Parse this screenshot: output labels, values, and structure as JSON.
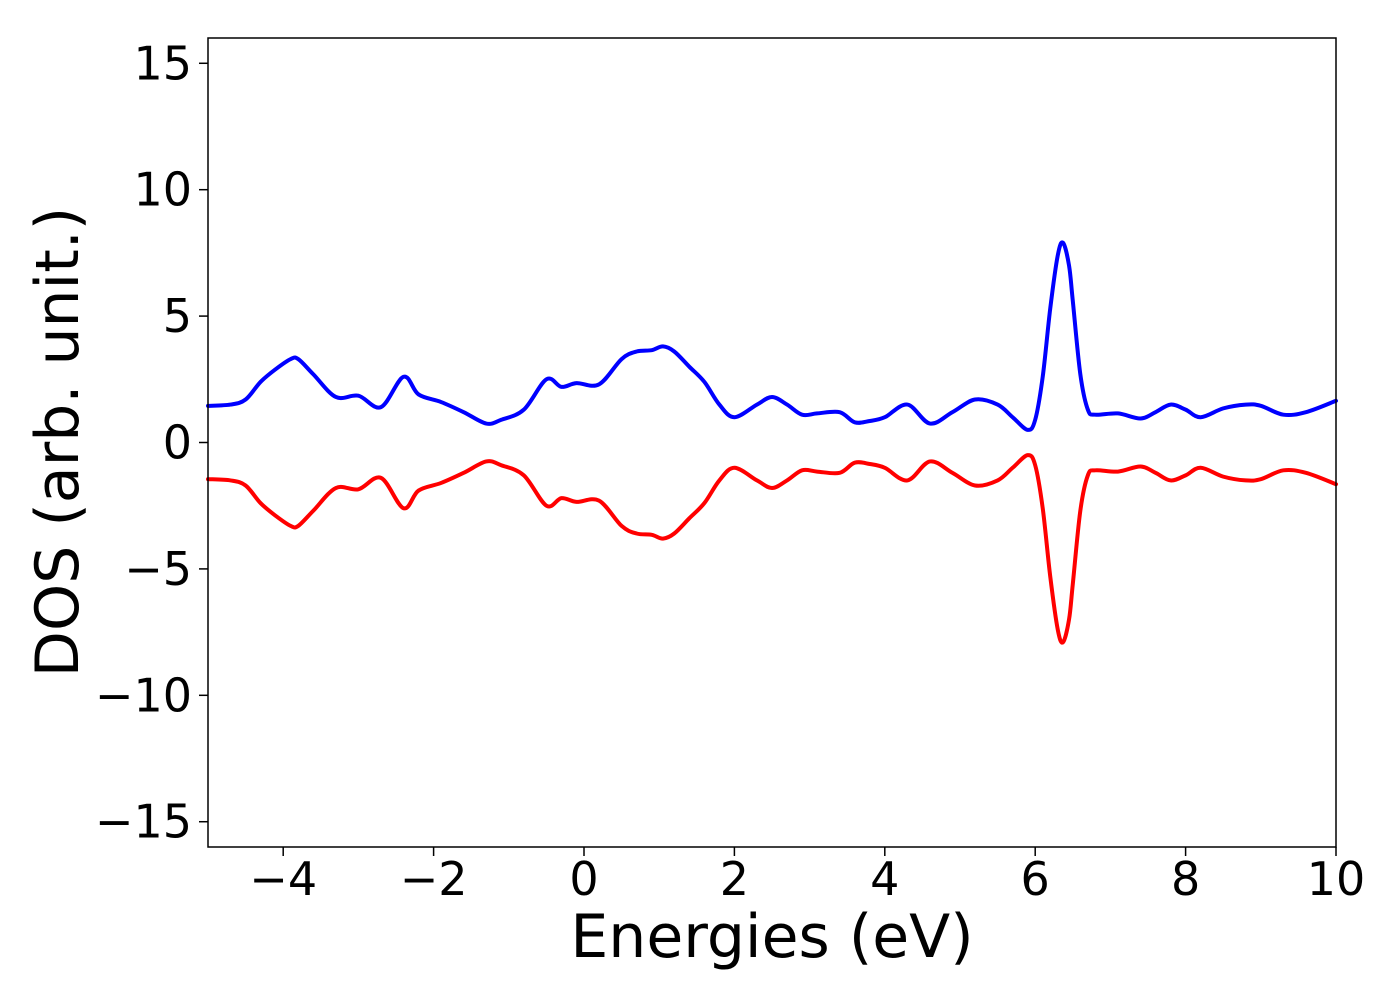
{
  "chart_data": {
    "type": "line",
    "title": "",
    "xlabel": "Energies (eV)",
    "ylabel": "DOS (arb. unit.)",
    "xlim": [
      -5,
      10
    ],
    "ylim": [
      -16,
      16
    ],
    "xticks": [
      -4,
      -2,
      0,
      2,
      4,
      6,
      8,
      10
    ],
    "yticks": [
      -15,
      -10,
      -5,
      0,
      5,
      10,
      15
    ],
    "xtick_labels": [
      "−4",
      "−2",
      "0",
      "2",
      "4",
      "6",
      "8",
      "10"
    ],
    "ytick_labels": [
      "−15",
      "−10",
      "−5",
      "0",
      "5",
      "10",
      "15"
    ],
    "grid": false,
    "legend": "none",
    "series": [
      {
        "color": "#0000ff",
        "x": [
          -5.0,
          -4.7,
          -4.5,
          -4.3,
          -4.1,
          -3.9,
          -3.8,
          -3.6,
          -3.3,
          -3.0,
          -2.7,
          -2.4,
          -2.2,
          -1.9,
          -1.6,
          -1.3,
          -1.1,
          -0.8,
          -0.5,
          -0.3,
          -0.1,
          0.2,
          0.5,
          0.7,
          0.9,
          1.05,
          1.2,
          1.4,
          1.6,
          1.8,
          2.0,
          2.3,
          2.5,
          2.7,
          2.9,
          3.1,
          3.4,
          3.6,
          3.8,
          4.0,
          4.3,
          4.6,
          4.9,
          5.2,
          5.5,
          5.7,
          5.9,
          6.0,
          6.1,
          6.2,
          6.3,
          6.37,
          6.45,
          6.5,
          6.6,
          6.7,
          6.8,
          7.1,
          7.4,
          7.6,
          7.8,
          8.0,
          8.2,
          8.5,
          8.8,
          9.0,
          9.3,
          9.6,
          10.0
        ],
        "y": [
          1.45,
          1.5,
          1.7,
          2.4,
          2.9,
          3.3,
          3.3,
          2.7,
          1.8,
          1.85,
          1.4,
          2.6,
          1.9,
          1.6,
          1.2,
          0.75,
          0.9,
          1.3,
          2.5,
          2.2,
          2.35,
          2.3,
          3.3,
          3.6,
          3.65,
          3.8,
          3.6,
          3.0,
          2.4,
          1.5,
          1.0,
          1.5,
          1.8,
          1.5,
          1.1,
          1.15,
          1.2,
          0.8,
          0.85,
          1.0,
          1.5,
          0.75,
          1.2,
          1.7,
          1.5,
          1.0,
          0.5,
          0.9,
          2.6,
          5.3,
          7.4,
          7.9,
          7.0,
          5.6,
          2.7,
          1.3,
          1.1,
          1.15,
          0.95,
          1.2,
          1.5,
          1.3,
          1.0,
          1.35,
          1.5,
          1.45,
          1.1,
          1.2,
          1.65
        ]
      },
      {
        "color": "#ff0000",
        "x": [
          -5.0,
          -4.7,
          -4.5,
          -4.3,
          -4.1,
          -3.9,
          -3.8,
          -3.6,
          -3.3,
          -3.0,
          -2.7,
          -2.4,
          -2.2,
          -1.9,
          -1.6,
          -1.3,
          -1.1,
          -0.8,
          -0.5,
          -0.3,
          -0.1,
          0.2,
          0.5,
          0.7,
          0.9,
          1.05,
          1.2,
          1.4,
          1.6,
          1.8,
          2.0,
          2.3,
          2.5,
          2.7,
          2.9,
          3.1,
          3.4,
          3.6,
          3.8,
          4.0,
          4.3,
          4.6,
          4.9,
          5.2,
          5.5,
          5.7,
          5.9,
          6.0,
          6.1,
          6.2,
          6.3,
          6.37,
          6.45,
          6.5,
          6.6,
          6.7,
          6.8,
          7.1,
          7.4,
          7.6,
          7.8,
          8.0,
          8.2,
          8.5,
          8.8,
          9.0,
          9.3,
          9.6,
          10.0
        ],
        "y": [
          -1.45,
          -1.5,
          -1.7,
          -2.4,
          -2.9,
          -3.3,
          -3.3,
          -2.7,
          -1.8,
          -1.85,
          -1.4,
          -2.6,
          -1.9,
          -1.6,
          -1.2,
          -0.75,
          -0.9,
          -1.3,
          -2.5,
          -2.2,
          -2.35,
          -2.3,
          -3.3,
          -3.6,
          -3.65,
          -3.8,
          -3.6,
          -3.0,
          -2.4,
          -1.5,
          -1.0,
          -1.5,
          -1.8,
          -1.5,
          -1.1,
          -1.15,
          -1.2,
          -0.8,
          -0.85,
          -1.0,
          -1.5,
          -0.75,
          -1.2,
          -1.7,
          -1.5,
          -1.0,
          -0.5,
          -0.9,
          -2.6,
          -5.3,
          -7.4,
          -7.9,
          -7.0,
          -5.6,
          -2.7,
          -1.3,
          -1.1,
          -1.15,
          -0.95,
          -1.2,
          -1.5,
          -1.3,
          -1.0,
          -1.35,
          -1.5,
          -1.45,
          -1.1,
          -1.2,
          -1.65
        ]
      }
    ]
  }
}
